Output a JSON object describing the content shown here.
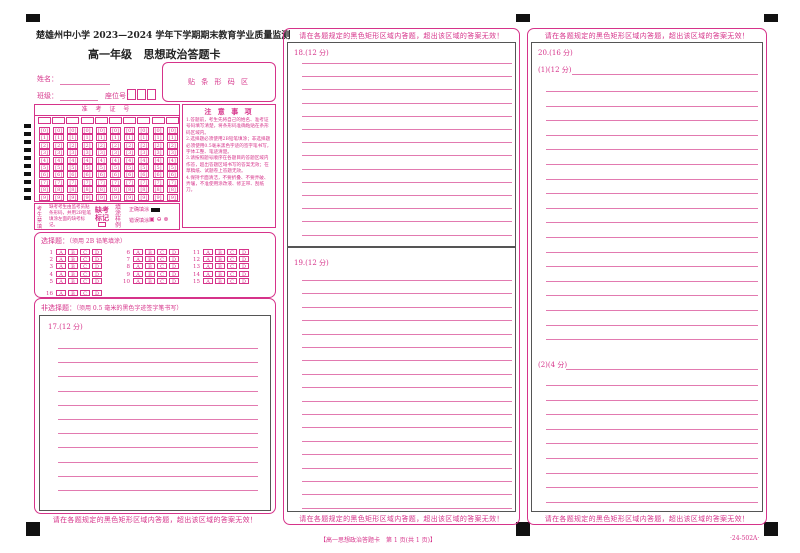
{
  "header": {
    "school_title": "楚雄州中小学 2023—2024 学年下学期期末教育学业质量监测",
    "card_title": "高一年级   思想政治答题卡"
  },
  "student": {
    "name_label": "姓名",
    "class_label": "班级",
    "seat_label": "座位号",
    "barcode_area": "贴 条 形 码 区"
  },
  "exam_number": {
    "title": "准 考 证 号",
    "digits": [
      "0",
      "1",
      "2",
      "3",
      "4",
      "5",
      "6",
      "7",
      "8",
      "9"
    ]
  },
  "notice": {
    "title": "注 意 事 项",
    "items": [
      "1.答题前，考生先将自己的姓名、准考证号码填写清楚，将条形码准确粘贴在条形码区域内。",
      "2.选择题必须使用2B铅笔填涂；非选择题必须使用0.5毫米黑色字迹的签字笔书写，字体工整、笔迹清楚。",
      "3.请按照题号顺序在各题目的答题区域内作答，超出答题区域书写的答案无效；在草稿纸、试题卷上答题无效。",
      "4.保持卡面清洁，不要折叠、不要弄破、弄皱，不准使用涂改液、修正带、刮纸刀。"
    ]
  },
  "fill_legend": {
    "examinee_label": "考生禁填",
    "examinee_text": "缺考考生由监考员贴条形码，并用2B铅笔填涂左面的缺考标记。",
    "absent_label": "缺考标记",
    "fill_label": "填涂样例",
    "correct_label": "正确填涂",
    "wrong_label": "错误填涂"
  },
  "choice": {
    "title": "选择题",
    "note": "（须用 2B 铅笔填涂）",
    "options": [
      "A",
      "B",
      "C",
      "D"
    ],
    "columns": [
      [
        1,
        2,
        3,
        4,
        5
      ],
      [
        6,
        7,
        8,
        9,
        10
      ],
      [
        11,
        12,
        13,
        14,
        15
      ],
      [
        16
      ]
    ]
  },
  "nonchoice": {
    "title": "非选择题",
    "note": "（须用 0.5 毫米的黑色字迹签字笔书写）"
  },
  "questions": {
    "q17": "17.(12 分)",
    "q18": "18.(12 分)",
    "q19": "19.(12 分)",
    "q20": "20.(16 分)",
    "q20_1": "(1)(12 分)",
    "q20_2": "(2)(4 分)"
  },
  "warning_text": "请在各题规定的黑色矩形区域内答题，超出该区域的答案无效！",
  "footer": {
    "center": "【高一思想政治答题卡　第 1 页(共 1 页)】",
    "code": "·24-502A·"
  },
  "colors": {
    "accent": "#d6338a",
    "mark": "#111111"
  }
}
